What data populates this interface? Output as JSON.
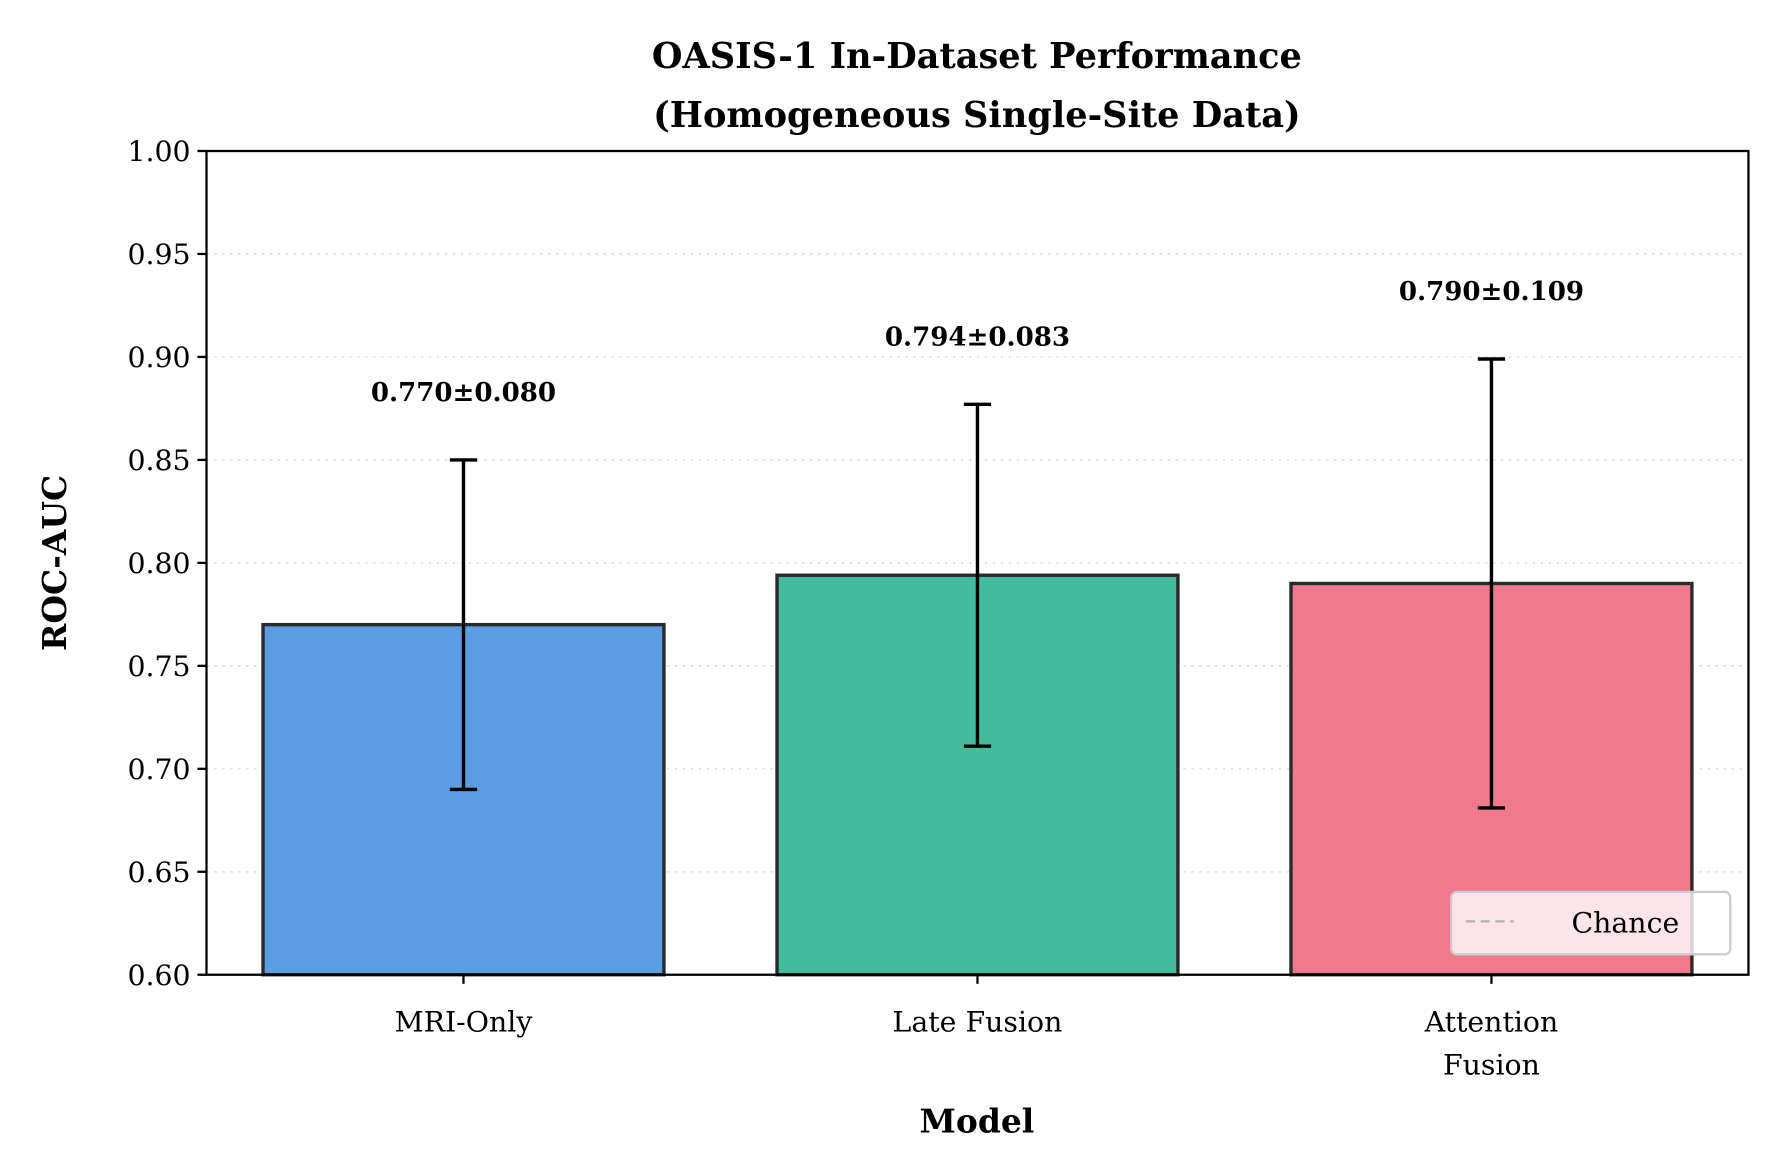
{
  "chart_data": {
    "type": "bar",
    "title": "OASIS-1 In-Dataset Performance\n(Homogeneous Single-Site Data)",
    "title_lines": [
      "OASIS-1 In-Dataset Performance",
      "(Homogeneous Single-Site Data)"
    ],
    "xlabel": "Model",
    "ylabel": "ROC-AUC",
    "ylim": [
      0.6,
      1.0
    ],
    "yticks": [
      "0.60",
      "0.65",
      "0.70",
      "0.75",
      "0.80",
      "0.85",
      "0.90",
      "0.95",
      "1.00"
    ],
    "grid": "y, dotted",
    "categories": [
      [
        "MRI-Only"
      ],
      [
        "Late Fusion"
      ],
      [
        "Attention",
        "Fusion"
      ]
    ],
    "values": [
      0.77,
      0.794,
      0.79
    ],
    "errors": [
      0.08,
      0.083,
      0.109
    ],
    "data_labels": [
      "0.770±0.080",
      "0.794±0.083",
      "0.790±0.109"
    ],
    "colors": [
      "#5a9de3",
      "#43bb9d",
      "#f07a8c"
    ],
    "legend": {
      "entries": [
        {
          "label": "Chance",
          "style": "dashed",
          "color": "#b0b0b0"
        }
      ],
      "placement": "lower-right"
    }
  }
}
